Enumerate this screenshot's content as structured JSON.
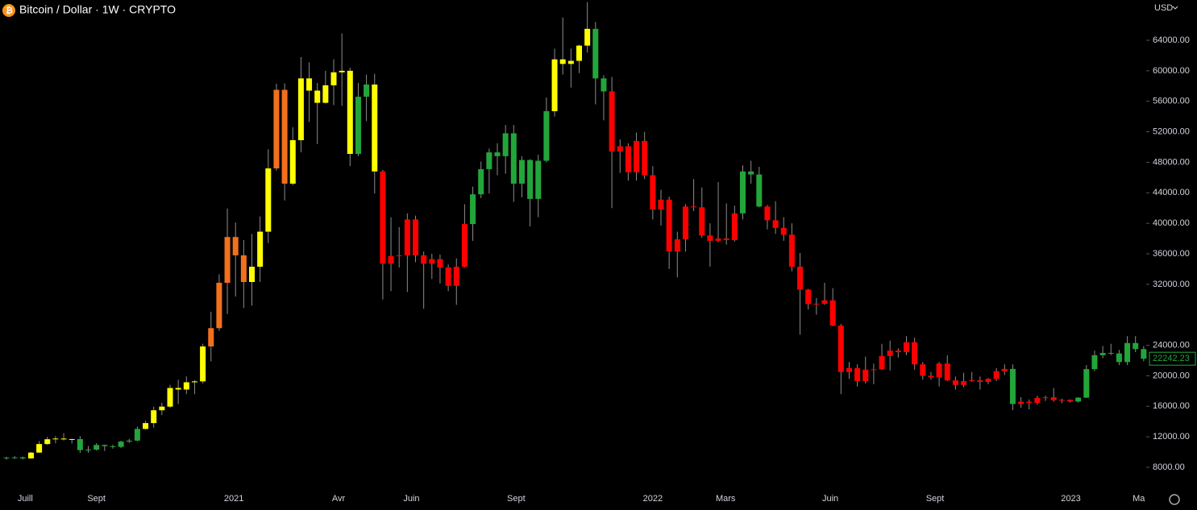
{
  "chart_data": {
    "type": "candlestick",
    "title": "Bitcoin / Dollar · 1W · CRYPTO",
    "currency": "USD",
    "open": [
      9190,
      9290,
      9300,
      9160,
      9930,
      11050,
      11680,
      11770,
      11660,
      11700,
      10260,
      10320,
      10930,
      10770,
      10680,
      11370,
      11500,
      13030,
      13800,
      15480,
      15960,
      18400,
      18200,
      19150,
      19270,
      23850,
      26250,
      32200,
      38200,
      35800,
      32300,
      34300,
      38900,
      47200,
      57500,
      45200,
      50900,
      59000,
      57400,
      55800,
      58100,
      59800,
      60000,
      49100,
      56600,
      58200,
      46800,
      34700,
      35700,
      35800,
      40500,
      35800,
      34700,
      35300,
      34200,
      31800,
      34300,
      39900,
      43800,
      47100,
      49300,
      48800,
      51800,
      45200,
      48300,
      43200,
      48200,
      54700,
      61500,
      60900,
      61300,
      63300,
      65500,
      59000,
      57300,
      49400,
      50100,
      46700,
      50800,
      46300,
      41800,
      43100,
      36300,
      37900,
      42200,
      42100,
      38400,
      37700,
      38000,
      37800,
      41300,
      46800,
      46400,
      42200,
      40400,
      39400,
      38500,
      34300,
      31300,
      29400,
      29450,
      29900,
      26570,
      20500,
      21000,
      19300,
      20800,
      20850,
      22600,
      23300,
      23100,
      24400,
      21500,
      20000,
      19800,
      21600,
      19400,
      18800,
      19300,
      19400,
      19200,
      19600,
      20600,
      20900,
      16300,
      16600,
      16450,
      17100,
      17180,
      16800,
      16840,
      16620,
      17130,
      20880,
      22700,
      23000,
      22930,
      21800,
      24300,
      23500
    ],
    "high": [
      9380,
      9470,
      9400,
      10000,
      11440,
      12000,
      12100,
      12470,
      11760,
      12090,
      10800,
      11170,
      10990,
      10950,
      11490,
      11730,
      13350,
      14100,
      15970,
      16480,
      18800,
      19480,
      19920,
      19420,
      24200,
      28400,
      33300,
      41950,
      40100,
      37800,
      38600,
      40900,
      49700,
      58300,
      58350,
      52600,
      61800,
      61100,
      58400,
      60000,
      61500,
      64900,
      60400,
      58400,
      59500,
      59600,
      47000,
      40800,
      39500,
      41300,
      41000,
      36300,
      36000,
      35900,
      34600,
      35400,
      42500,
      44800,
      48100,
      49800,
      50500,
      52900,
      52900,
      48800,
      48400,
      49000,
      56500,
      62900,
      67000,
      62900,
      63400,
      69000,
      66400,
      59400,
      59200,
      51000,
      50500,
      51900,
      52000,
      47500,
      44400,
      43500,
      38900,
      42500,
      45800,
      44700,
      40000,
      45400,
      42600,
      42300,
      47600,
      48200,
      47400,
      42400,
      42900,
      40800,
      40000,
      36100,
      31400,
      30200,
      32200,
      31500,
      26800,
      21800,
      21500,
      22500,
      21600,
      24200,
      24600,
      23600,
      25200,
      25000,
      21800,
      20500,
      21800,
      22700,
      19900,
      20400,
      20500,
      19900,
      19700,
      21000,
      21500,
      21500,
      17200,
      16900,
      17400,
      17400,
      18400,
      17000,
      16900,
      17200,
      21400,
      23300,
      23900,
      24200,
      23400,
      25200,
      25200,
      23900
    ],
    "low": [
      8990,
      9100,
      9030,
      9140,
      9900,
      10930,
      11150,
      11520,
      11130,
      9880,
      9900,
      10200,
      10140,
      10450,
      10530,
      11200,
      11420,
      12980,
      13200,
      14850,
      15800,
      16300,
      17600,
      17600,
      19000,
      21900,
      25900,
      28100,
      30400,
      28900,
      29200,
      32300,
      37400,
      46900,
      43000,
      45000,
      49300,
      53300,
      50400,
      55700,
      55500,
      55400,
      47500,
      48800,
      53400,
      43900,
      30000,
      31100,
      34200,
      31000,
      34900,
      28800,
      32700,
      32100,
      31100,
      29300,
      34200,
      37700,
      43300,
      43900,
      46300,
      46500,
      42800,
      43400,
      39600,
      40800,
      48000,
      54000,
      59500,
      57800,
      59700,
      62400,
      55600,
      53500,
      42000,
      46600,
      45600,
      45600,
      45800,
      40500,
      39700,
      34000,
      32900,
      36300,
      41600,
      38100,
      34300,
      37500,
      37200,
      37600,
      40500,
      45200,
      42100,
      39200,
      38600,
      37700,
      33700,
      25400,
      28700,
      28000,
      29300,
      26500,
      17600,
      19600,
      18600,
      19000,
      18900,
      20800,
      20700,
      22400,
      22700,
      20800,
      19500,
      19500,
      18600,
      19300,
      18200,
      18500,
      19200,
      18200,
      18900,
      19300,
      20100,
      15500,
      15800,
      15600,
      16200,
      16700,
      16600,
      16400,
      16500,
      16500,
      17100,
      20600,
      22300,
      22700,
      21400,
      21400,
      23100,
      21900
    ],
    "close": [
      9290,
      9300,
      9160,
      9930,
      11050,
      11680,
      11770,
      11660,
      11700,
      10260,
      10320,
      10930,
      10770,
      10680,
      11370,
      11500,
      13030,
      13800,
      15480,
      15960,
      18400,
      18200,
      19150,
      19270,
      23850,
      26250,
      32200,
      38200,
      35800,
      32300,
      34300,
      38900,
      47200,
      57500,
      45200,
      50900,
      59000,
      57400,
      55800,
      58100,
      59800,
      60000,
      49100,
      56600,
      58200,
      46800,
      34700,
      35700,
      35800,
      40500,
      35800,
      34700,
      35300,
      34200,
      31800,
      34300,
      39900,
      43800,
      47100,
      49300,
      48800,
      51800,
      45200,
      48300,
      43200,
      48200,
      54700,
      61500,
      60900,
      61300,
      63300,
      65500,
      59000,
      57300,
      49400,
      50100,
      46700,
      50800,
      46300,
      41800,
      43100,
      36300,
      37900,
      42200,
      42100,
      38400,
      37700,
      38000,
      37800,
      41300,
      46800,
      46400,
      42200,
      40400,
      39400,
      38500,
      34300,
      31300,
      29400,
      29450,
      29900,
      26570,
      20500,
      21000,
      19300,
      20800,
      20850,
      22600,
      23300,
      23100,
      24400,
      21500,
      20000,
      19800,
      21600,
      19400,
      18800,
      19300,
      19400,
      19200,
      19600,
      20600,
      20900,
      16300,
      16600,
      16450,
      17100,
      17180,
      16800,
      16840,
      16620,
      17130,
      20880,
      22700,
      23000,
      22930,
      21800,
      24300,
      23500,
      22242.23
    ],
    "colors": [
      "#22a63a",
      "#22a63a",
      "#22a63a",
      "#ffff00",
      "#ffff00",
      "#ffff00",
      "#ffff00",
      "#ffff00",
      "#ffff00",
      "#22a63a",
      "#22a63a",
      "#22a63a",
      "#22a63a",
      "#22a63a",
      "#22a63a",
      "#22a63a",
      "#22a63a",
      "#ffff00",
      "#ffff00",
      "#ffff00",
      "#ffff00",
      "#ffff00",
      "#ffff00",
      "#ffff00",
      "#ffff00",
      "#f2701c",
      "#f2701c",
      "#f2701c",
      "#f2701c",
      "#f2701c",
      "#ffff00",
      "#ffff00",
      "#ffff00",
      "#f2701c",
      "#f2701c",
      "#ffff00",
      "#ffff00",
      "#ffff00",
      "#ffff00",
      "#ffff00",
      "#ffff00",
      "#ffff00",
      "#ffff00",
      "#22a63a",
      "#22a63a",
      "#ffff00",
      "#ff0000",
      "#ff0000",
      "#ff0000",
      "#ff0000",
      "#ff0000",
      "#ff0000",
      "#ff0000",
      "#ff0000",
      "#ff0000",
      "#ff0000",
      "#ff0000",
      "#22a63a",
      "#22a63a",
      "#22a63a",
      "#22a63a",
      "#22a63a",
      "#22a63a",
      "#22a63a",
      "#22a63a",
      "#22a63a",
      "#22a63a",
      "#ffff00",
      "#ffff00",
      "#ffff00",
      "#ffff00",
      "#ffff00",
      "#22a63a",
      "#22a63a",
      "#ff0000",
      "#ff0000",
      "#ff0000",
      "#ff0000",
      "#ff0000",
      "#ff0000",
      "#ff0000",
      "#ff0000",
      "#ff0000",
      "#ff0000",
      "#ff0000",
      "#ff0000",
      "#ff0000",
      "#ff0000",
      "#ff0000",
      "#ff0000",
      "#22a63a",
      "#22a63a",
      "#22a63a",
      "#ff0000",
      "#ff0000",
      "#ff0000",
      "#ff0000",
      "#ff0000",
      "#ff0000",
      "#ff0000",
      "#ff0000",
      "#ff0000",
      "#ff0000",
      "#ff0000",
      "#ff0000",
      "#ff0000",
      "#ff0000",
      "#ff0000",
      "#ff0000",
      "#ff0000",
      "#ff0000",
      "#ff0000",
      "#ff0000",
      "#ff0000",
      "#ff0000",
      "#ff0000",
      "#ff0000",
      "#ff0000",
      "#ff0000",
      "#ff0000",
      "#ff0000",
      "#ff0000",
      "#ff0000",
      "#22a63a",
      "#ff0000",
      "#ff0000",
      "#ff0000",
      "#ff0000",
      "#ff0000",
      "#ff0000",
      "#ff0000",
      "#22a63a",
      "#22a63a",
      "#22a63a",
      "#22a63a",
      "#22a63a",
      "#22a63a",
      "#22a63a",
      "#22a63a",
      "#22a63a"
    ],
    "wick_color": "#8c8c8c",
    "ylim": [
      5887,
      69283
    ],
    "yticks": [
      {
        "value": 8000,
        "label": "8000.00"
      },
      {
        "value": 12000,
        "label": "12000.00"
      },
      {
        "value": 16000,
        "label": "16000.00"
      },
      {
        "value": 20000,
        "label": "20000.00"
      },
      {
        "value": 24000,
        "label": "24000.00"
      },
      {
        "value": 32000,
        "label": "32000.00"
      },
      {
        "value": 36000,
        "label": "36000.00"
      },
      {
        "value": 40000,
        "label": "40000.00"
      },
      {
        "value": 44000,
        "label": "44000.00"
      },
      {
        "value": 48000,
        "label": "48000.00"
      },
      {
        "value": 52000,
        "label": "52000.00"
      },
      {
        "value": 56000,
        "label": "56000.00"
      },
      {
        "value": 60000,
        "label": "60000.00"
      },
      {
        "value": 64000,
        "label": "64000.00"
      }
    ],
    "xticks": [
      {
        "value": 2.3,
        "label": "Juill"
      },
      {
        "value": 11,
        "label": "Sept"
      },
      {
        "value": 27.8,
        "label": "2021"
      },
      {
        "value": 40.6,
        "label": "Avr"
      },
      {
        "value": 49.5,
        "label": "Juin"
      },
      {
        "value": 62.3,
        "label": "Sept"
      },
      {
        "value": 79,
        "label": "2022"
      },
      {
        "value": 87.9,
        "label": "Mars"
      },
      {
        "value": 100.7,
        "label": "Juin"
      },
      {
        "value": 113.5,
        "label": "Sept"
      },
      {
        "value": 130.1,
        "label": "2023"
      },
      {
        "value": 138.4,
        "label": "Ma"
      }
    ],
    "last_price": {
      "value": 22242.23,
      "label": "22242.23"
    }
  }
}
